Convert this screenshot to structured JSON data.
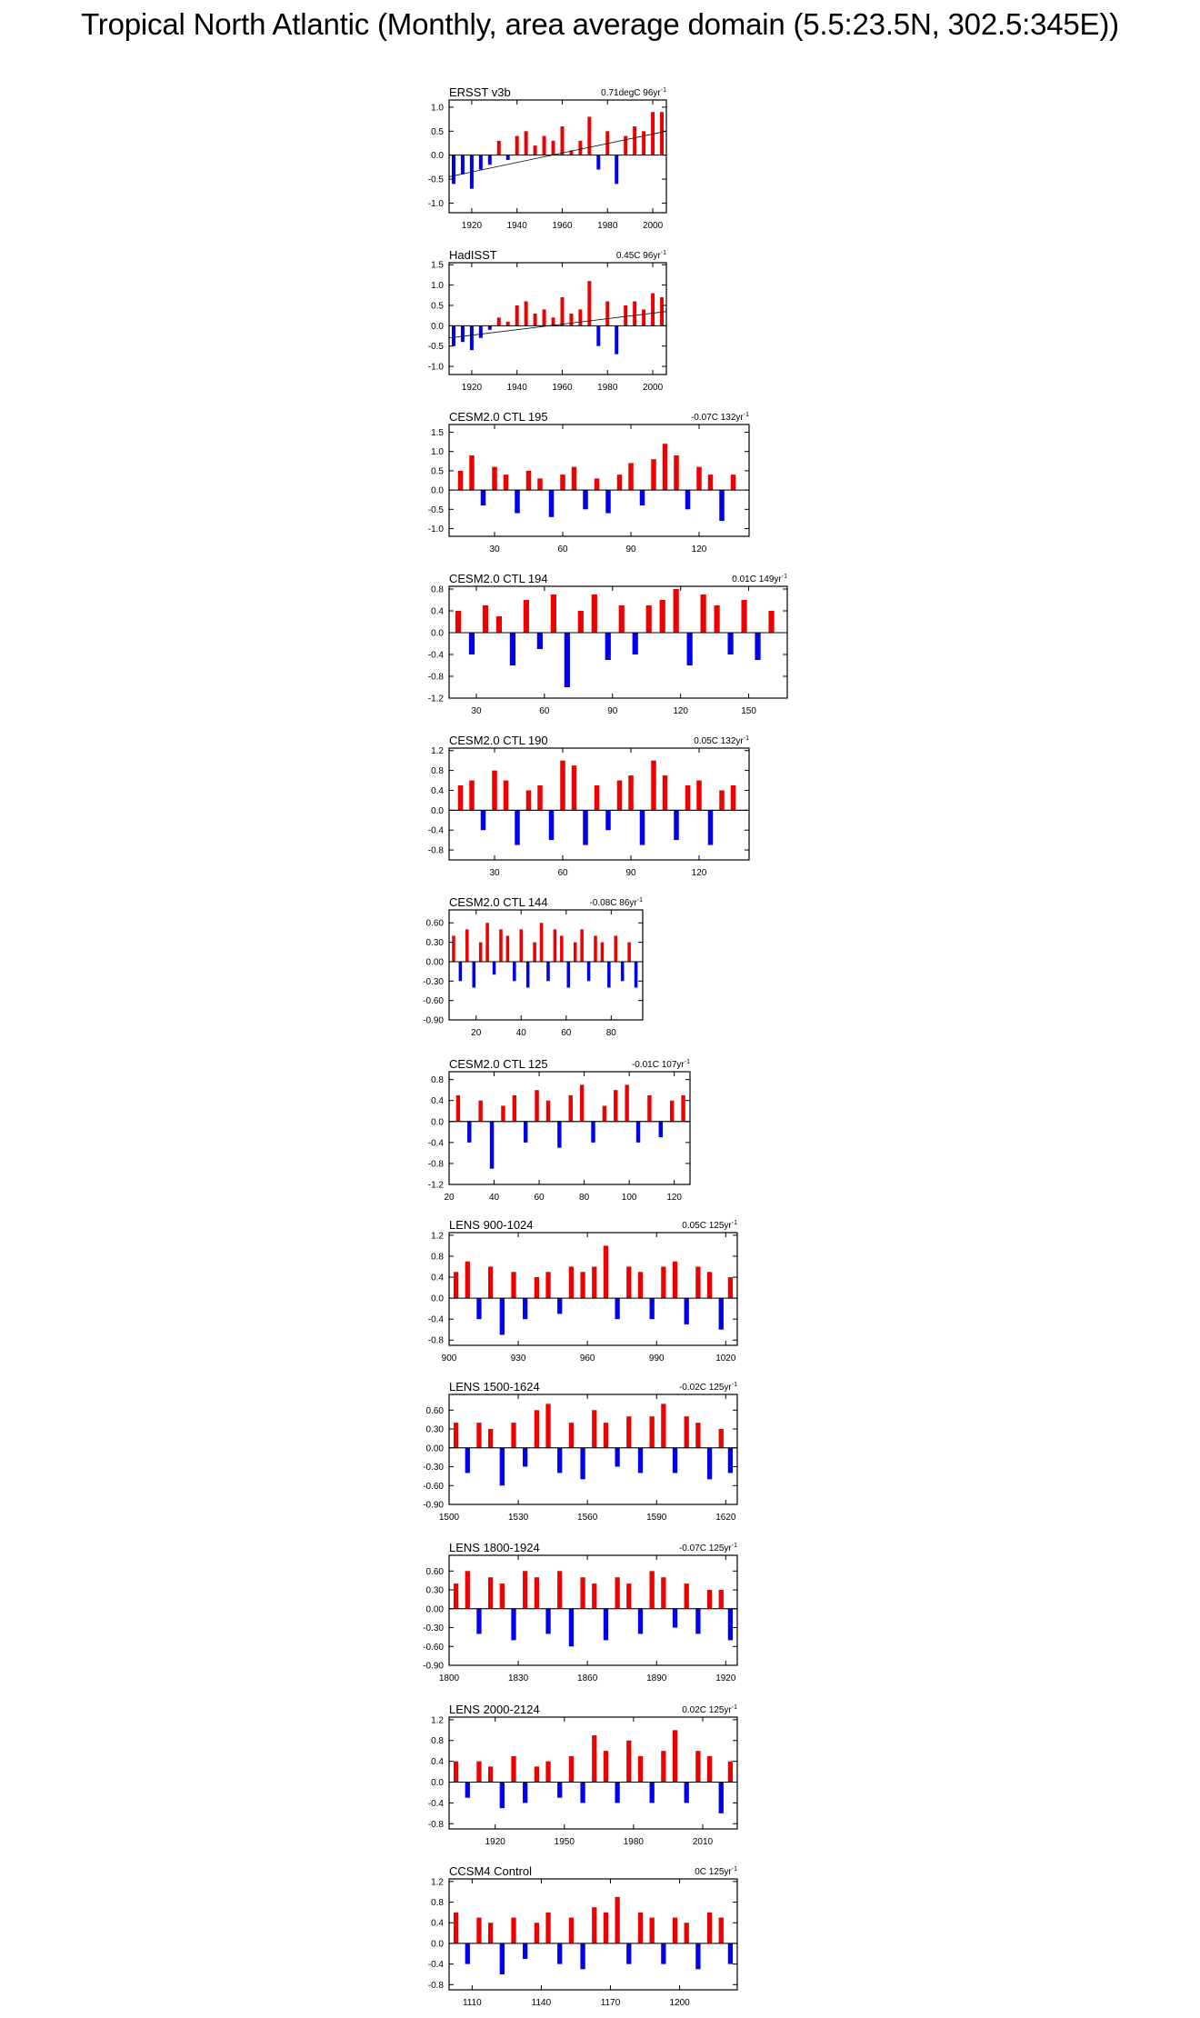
{
  "title": "Tropical North Atlantic (Monthly, area average domain (5.5:23.5N, 302.5:345E))",
  "colors": {
    "positive": "#ee0000",
    "negative": "#0000ee",
    "trend": "#000000",
    "axis": "#000000"
  },
  "chart_data": [
    {
      "type": "bar",
      "name": "ERSST v3b",
      "stat": "0.71degC 96yr",
      "unit_sup": "-1",
      "xlim": [
        1910,
        2006
      ],
      "ylim": [
        -1.2,
        1.15
      ],
      "xticks": [
        1920,
        1940,
        1960,
        1980,
        2000
      ],
      "yticks": [
        "1.0",
        "0.5",
        "0.0",
        "-0.5",
        "-1.0"
      ],
      "ytick_values": [
        1.0,
        0.5,
        0.0,
        -0.5,
        -1.0
      ],
      "trend": [
        -0.45,
        0.5
      ],
      "series": [
        {
          "x": [
            1912,
            1916,
            1920,
            1924,
            1928,
            1932,
            1936,
            1940,
            1944,
            1948,
            1952,
            1956,
            1960,
            1964,
            1968,
            1972,
            1976,
            1980,
            1984,
            1988,
            1992,
            1996,
            2000,
            2004
          ],
          "values": [
            -0.6,
            -0.4,
            -0.7,
            -0.3,
            -0.2,
            0.3,
            -0.1,
            0.4,
            0.5,
            0.2,
            0.4,
            0.3,
            0.6,
            0.1,
            0.3,
            0.8,
            -0.3,
            0.5,
            -0.6,
            0.4,
            0.6,
            0.5,
            0.9,
            0.9
          ]
        }
      ]
    },
    {
      "type": "bar",
      "name": "HadISST",
      "stat": "0.45C 96yr",
      "unit_sup": "-1",
      "xlim": [
        1910,
        2006
      ],
      "ylim": [
        -1.2,
        1.55
      ],
      "xticks": [
        1920,
        1940,
        1960,
        1980,
        2000
      ],
      "yticks": [
        "1.5",
        "1.0",
        "0.5",
        "0.0",
        "-0.5",
        "-1.0"
      ],
      "ytick_values": [
        1.5,
        1.0,
        0.5,
        0.0,
        -0.5,
        -1.0
      ],
      "trend": [
        -0.3,
        0.35
      ],
      "series": [
        {
          "x": [
            1912,
            1916,
            1920,
            1924,
            1928,
            1932,
            1936,
            1940,
            1944,
            1948,
            1952,
            1956,
            1960,
            1964,
            1968,
            1972,
            1976,
            1980,
            1984,
            1988,
            1992,
            1996,
            2000,
            2004
          ],
          "values": [
            -0.5,
            -0.4,
            -0.6,
            -0.3,
            -0.1,
            0.2,
            0.1,
            0.5,
            0.6,
            0.3,
            0.4,
            0.2,
            0.7,
            0.3,
            0.4,
            1.1,
            -0.5,
            0.6,
            -0.7,
            0.5,
            0.6,
            0.4,
            0.8,
            0.7
          ]
        }
      ]
    },
    {
      "type": "bar",
      "name": "CESM2.0 CTL 195",
      "stat": "-0.07C 132yr",
      "unit_sup": "-1",
      "xlim": [
        10,
        142
      ],
      "ylim": [
        -1.2,
        1.7
      ],
      "xticks": [
        30,
        60,
        90,
        120
      ],
      "yticks": [
        "1.5",
        "1.0",
        "0.5",
        "0.0",
        "-0.5",
        "-1.0"
      ],
      "ytick_values": [
        1.5,
        1.0,
        0.5,
        0.0,
        -0.5,
        -1.0
      ],
      "trend": [
        0.0,
        0.0
      ],
      "series": [
        {
          "x": [
            15,
            20,
            25,
            30,
            35,
            40,
            45,
            50,
            55,
            60,
            65,
            70,
            75,
            80,
            85,
            90,
            95,
            100,
            105,
            110,
            115,
            120,
            125,
            130,
            135
          ],
          "values": [
            0.5,
            0.9,
            -0.4,
            0.6,
            0.4,
            -0.6,
            0.5,
            0.3,
            -0.7,
            0.4,
            0.6,
            -0.5,
            0.3,
            -0.6,
            0.4,
            0.7,
            -0.4,
            0.8,
            1.2,
            0.9,
            -0.5,
            0.6,
            0.4,
            -0.8,
            0.4
          ]
        }
      ]
    },
    {
      "type": "bar",
      "name": "CESM2.0 CTL 194",
      "stat": "0.01C 149yr",
      "unit_sup": "-1",
      "xlim": [
        18,
        167
      ],
      "ylim": [
        -1.2,
        0.85
      ],
      "xticks": [
        30,
        60,
        90,
        120,
        150
      ],
      "yticks": [
        "0.8",
        "0.4",
        "0.0",
        "-0.4",
        "-0.8",
        "-1.2"
      ],
      "ytick_values": [
        0.8,
        0.4,
        0.0,
        -0.4,
        -0.8,
        -1.2
      ],
      "trend": [
        0.0,
        0.0
      ],
      "series": [
        {
          "x": [
            22,
            28,
            34,
            40,
            46,
            52,
            58,
            64,
            70,
            76,
            82,
            88,
            94,
            100,
            106,
            112,
            118,
            124,
            130,
            136,
            142,
            148,
            154,
            160
          ],
          "values": [
            0.4,
            -0.4,
            0.5,
            0.3,
            -0.6,
            0.6,
            -0.3,
            0.7,
            -1.0,
            0.4,
            0.7,
            -0.5,
            0.5,
            -0.4,
            0.5,
            0.6,
            0.8,
            -0.6,
            0.7,
            0.5,
            -0.4,
            0.6,
            -0.5,
            0.4
          ]
        }
      ]
    },
    {
      "type": "bar",
      "name": "CESM2.0 CTL 190",
      "stat": "0.05C 132yr",
      "unit_sup": "-1",
      "xlim": [
        10,
        142
      ],
      "ylim": [
        -1.0,
        1.25
      ],
      "xticks": [
        30,
        60,
        90,
        120
      ],
      "yticks": [
        "1.2",
        "0.8",
        "0.4",
        "0.0",
        "-0.4",
        "-0.8"
      ],
      "ytick_values": [
        1.2,
        0.8,
        0.4,
        0.0,
        -0.4,
        -0.8
      ],
      "trend": [
        0.0,
        0.0
      ],
      "series": [
        {
          "x": [
            15,
            20,
            25,
            30,
            35,
            40,
            45,
            50,
            55,
            60,
            65,
            70,
            75,
            80,
            85,
            90,
            95,
            100,
            105,
            110,
            115,
            120,
            125,
            130,
            135
          ],
          "values": [
            0.5,
            0.6,
            -0.4,
            0.8,
            0.6,
            -0.7,
            0.4,
            0.5,
            -0.6,
            1.0,
            0.9,
            -0.7,
            0.5,
            -0.4,
            0.6,
            0.7,
            -0.7,
            1.0,
            0.7,
            -0.6,
            0.5,
            0.6,
            -0.7,
            0.4,
            0.5
          ]
        }
      ]
    },
    {
      "type": "bar",
      "name": "CESM2.0 CTL 144",
      "stat": "-0.08C 86yr",
      "unit_sup": "-1",
      "xlim": [
        8,
        94
      ],
      "ylim": [
        -0.9,
        0.8
      ],
      "xticks": [
        20,
        40,
        60,
        80
      ],
      "yticks": [
        "0.60",
        "0.30",
        "0.00",
        "-0.30",
        "-0.60",
        "-0.90"
      ],
      "ytick_values": [
        0.6,
        0.3,
        0.0,
        -0.3,
        -0.6,
        -0.9
      ],
      "trend": [
        0.0,
        0.0
      ],
      "series": [
        {
          "x": [
            10,
            13,
            16,
            19,
            22,
            25,
            28,
            31,
            34,
            37,
            40,
            43,
            46,
            49,
            52,
            55,
            58,
            61,
            64,
            67,
            70,
            73,
            76,
            79,
            82,
            85,
            88,
            91
          ],
          "values": [
            0.4,
            -0.3,
            0.5,
            -0.4,
            0.3,
            0.6,
            -0.2,
            0.5,
            0.4,
            -0.3,
            0.5,
            -0.4,
            0.3,
            0.6,
            -0.3,
            0.5,
            0.4,
            -0.4,
            0.3,
            0.5,
            -0.3,
            0.4,
            0.3,
            -0.4,
            0.4,
            -0.3,
            0.3,
            -0.4
          ]
        }
      ]
    },
    {
      "type": "bar",
      "name": "CESM2.0 CTL 125",
      "stat": "-0.01C 107yr",
      "unit_sup": "-1",
      "xlim": [
        20,
        127
      ],
      "ylim": [
        -1.2,
        0.95
      ],
      "xticks": [
        20,
        40,
        60,
        80,
        100,
        120
      ],
      "yticks": [
        "0.8",
        "0.4",
        "0.0",
        "-0.4",
        "-0.8",
        "-1.2"
      ],
      "ytick_values": [
        0.8,
        0.4,
        0.0,
        -0.4,
        -0.8,
        -1.2
      ],
      "trend": [
        0.0,
        0.0
      ],
      "series": [
        {
          "x": [
            24,
            29,
            34,
            39,
            44,
            49,
            54,
            59,
            64,
            69,
            74,
            79,
            84,
            89,
            94,
            99,
            104,
            109,
            114,
            119,
            124
          ],
          "values": [
            0.5,
            -0.4,
            0.4,
            -0.9,
            0.3,
            0.5,
            -0.4,
            0.6,
            0.4,
            -0.5,
            0.5,
            0.7,
            -0.4,
            0.3,
            0.6,
            0.7,
            -0.4,
            0.5,
            -0.3,
            0.4,
            0.5
          ]
        }
      ]
    },
    {
      "type": "bar",
      "name": "LENS 900-1024",
      "stat": "0.05C 125yr",
      "unit_sup": "-1",
      "xlim": [
        900,
        1025
      ],
      "ylim": [
        -0.9,
        1.25
      ],
      "xticks": [
        900,
        930,
        960,
        990,
        1020
      ],
      "yticks": [
        "1.2",
        "0.8",
        "0.4",
        "0.0",
        "-0.4",
        "-0.8"
      ],
      "ytick_values": [
        1.2,
        0.8,
        0.4,
        0.0,
        -0.4,
        -0.8
      ],
      "trend": [
        0.0,
        0.0
      ],
      "series": [
        {
          "x": [
            903,
            908,
            913,
            918,
            923,
            928,
            933,
            938,
            943,
            948,
            953,
            958,
            963,
            968,
            973,
            978,
            983,
            988,
            993,
            998,
            1003,
            1008,
            1013,
            1018,
            1022
          ],
          "values": [
            0.5,
            0.7,
            -0.4,
            0.6,
            -0.7,
            0.5,
            -0.4,
            0.4,
            0.5,
            -0.3,
            0.6,
            0.5,
            0.6,
            1.0,
            -0.4,
            0.6,
            0.5,
            -0.4,
            0.6,
            0.7,
            -0.5,
            0.6,
            0.5,
            -0.6,
            0.4
          ]
        }
      ]
    },
    {
      "type": "bar",
      "name": "LENS 1500-1624",
      "stat": "-0.02C 125yr",
      "unit_sup": "-1",
      "xlim": [
        1500,
        1625
      ],
      "ylim": [
        -0.9,
        0.85
      ],
      "xticks": [
        1500,
        1530,
        1560,
        1590,
        1620
      ],
      "yticks": [
        "0.60",
        "0.30",
        "0.00",
        "-0.30",
        "-0.60",
        "-0.90"
      ],
      "ytick_values": [
        0.6,
        0.3,
        0.0,
        -0.3,
        -0.6,
        -0.9
      ],
      "trend": [
        0.0,
        0.0
      ],
      "series": [
        {
          "x": [
            1503,
            1508,
            1513,
            1518,
            1523,
            1528,
            1533,
            1538,
            1543,
            1548,
            1553,
            1558,
            1563,
            1568,
            1573,
            1578,
            1583,
            1588,
            1593,
            1598,
            1603,
            1608,
            1613,
            1618,
            1622
          ],
          "values": [
            0.4,
            -0.4,
            0.4,
            0.3,
            -0.6,
            0.4,
            -0.3,
            0.6,
            0.7,
            -0.4,
            0.4,
            -0.5,
            0.6,
            0.4,
            -0.3,
            0.5,
            -0.4,
            0.5,
            0.7,
            -0.4,
            0.5,
            0.4,
            -0.5,
            0.3,
            -0.4
          ]
        }
      ]
    },
    {
      "type": "bar",
      "name": "LENS 1800-1924",
      "stat": "-0.07C 125yr",
      "unit_sup": "-1",
      "xlim": [
        1800,
        1925
      ],
      "ylim": [
        -0.9,
        0.85
      ],
      "xticks": [
        1800,
        1830,
        1860,
        1890,
        1920
      ],
      "yticks": [
        "0.60",
        "0.30",
        "0.00",
        "-0.30",
        "-0.60",
        "-0.90"
      ],
      "ytick_values": [
        0.6,
        0.3,
        0.0,
        -0.3,
        -0.6,
        -0.9
      ],
      "trend": [
        0.0,
        0.0
      ],
      "series": [
        {
          "x": [
            1803,
            1808,
            1813,
            1818,
            1823,
            1828,
            1833,
            1838,
            1843,
            1848,
            1853,
            1858,
            1863,
            1868,
            1873,
            1878,
            1883,
            1888,
            1893,
            1898,
            1903,
            1908,
            1913,
            1918,
            1922
          ],
          "values": [
            0.4,
            0.6,
            -0.4,
            0.5,
            0.4,
            -0.5,
            0.6,
            0.5,
            -0.4,
            0.6,
            -0.6,
            0.5,
            0.4,
            -0.5,
            0.5,
            0.4,
            -0.4,
            0.6,
            0.5,
            -0.3,
            0.4,
            -0.4,
            0.3,
            0.3,
            -0.5
          ]
        }
      ]
    },
    {
      "type": "bar",
      "name": "LENS 2000-2124",
      "stat": "0.02C 125yr",
      "unit_sup": "-1",
      "xlim": [
        1900,
        2025
      ],
      "ylim": [
        -0.9,
        1.25
      ],
      "xticks": [
        1920,
        1950,
        1980,
        2010
      ],
      "yticks": [
        "1.2",
        "0.8",
        "0.4",
        "0.0",
        "-0.4",
        "-0.8"
      ],
      "ytick_values": [
        1.2,
        0.8,
        0.4,
        0.0,
        -0.4,
        -0.8
      ],
      "trend": [
        0.0,
        0.0
      ],
      "series": [
        {
          "x": [
            1903,
            1908,
            1913,
            1918,
            1923,
            1928,
            1933,
            1938,
            1943,
            1948,
            1953,
            1958,
            1963,
            1968,
            1973,
            1978,
            1983,
            1988,
            1993,
            1998,
            2003,
            2008,
            2013,
            2018,
            2022
          ],
          "values": [
            0.4,
            -0.3,
            0.4,
            0.3,
            -0.5,
            0.5,
            -0.4,
            0.3,
            0.4,
            -0.3,
            0.5,
            -0.4,
            0.9,
            0.6,
            -0.4,
            0.8,
            0.5,
            -0.4,
            0.6,
            1.0,
            -0.4,
            0.6,
            0.5,
            -0.6,
            0.4
          ]
        }
      ]
    },
    {
      "type": "bar",
      "name": "CCSM4 Control",
      "stat": "0C 125yr",
      "unit_sup": "-1",
      "xlim": [
        1100,
        1225
      ],
      "ylim": [
        -0.9,
        1.25
      ],
      "xticks": [
        1110,
        1140,
        1170,
        1200
      ],
      "yticks": [
        "1.2",
        "0.8",
        "0.4",
        "0.0",
        "-0.4",
        "-0.8"
      ],
      "ytick_values": [
        1.2,
        0.8,
        0.4,
        0.0,
        -0.4,
        -0.8
      ],
      "trend": [
        0.0,
        0.0
      ],
      "series": [
        {
          "x": [
            1103,
            1108,
            1113,
            1118,
            1123,
            1128,
            1133,
            1138,
            1143,
            1148,
            1153,
            1158,
            1163,
            1168,
            1173,
            1178,
            1183,
            1188,
            1193,
            1198,
            1203,
            1208,
            1213,
            1218,
            1222
          ],
          "values": [
            0.6,
            -0.4,
            0.5,
            0.4,
            -0.6,
            0.5,
            -0.3,
            0.4,
            0.6,
            -0.4,
            0.5,
            -0.5,
            0.7,
            0.6,
            0.9,
            -0.4,
            0.6,
            0.5,
            -0.4,
            0.5,
            0.4,
            -0.5,
            0.6,
            0.5,
            -0.4
          ]
        }
      ]
    }
  ]
}
